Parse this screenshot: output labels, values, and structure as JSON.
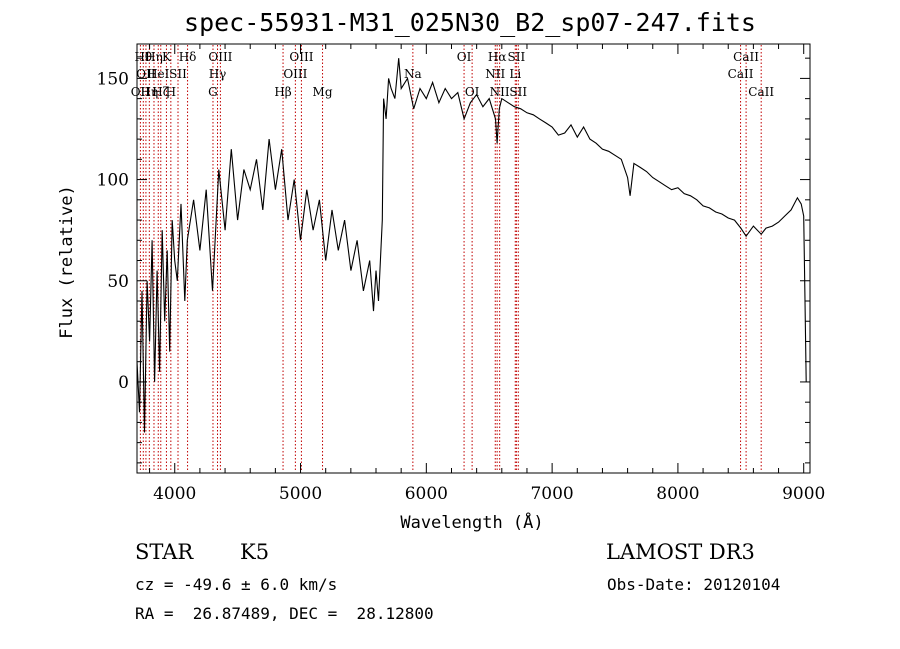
{
  "title": "spec-55931-M31_025N30_B2_sp07-247.fits",
  "info": {
    "class_label": "STAR",
    "subclass": "K5",
    "survey": "LAMOST DR3",
    "cz": "cz = -49.6 ± 6.0 km/s",
    "obs_date": "Obs-Date: 20120104",
    "coords": "RA =  26.87489, DEC =  28.12800"
  },
  "chart_data": {
    "type": "line",
    "title": "spec-55931-M31_025N30_B2_sp07-247.fits",
    "xlabel": "Wavelength (Å)",
    "ylabel": "Flux (relative)",
    "xlim": [
      3700,
      9050
    ],
    "ylim": [
      -45,
      167
    ],
    "xticks": [
      4000,
      5000,
      6000,
      7000,
      8000,
      9000
    ],
    "yticks": [
      0,
      50,
      100,
      150
    ],
    "series": [
      {
        "name": "flux",
        "points": [
          [
            3700,
            10
          ],
          [
            3720,
            -15
          ],
          [
            3740,
            45
          ],
          [
            3760,
            -25
          ],
          [
            3780,
            50
          ],
          [
            3800,
            20
          ],
          [
            3820,
            70
          ],
          [
            3840,
            0
          ],
          [
            3860,
            55
          ],
          [
            3880,
            5
          ],
          [
            3900,
            75
          ],
          [
            3920,
            30
          ],
          [
            3940,
            65
          ],
          [
            3960,
            15
          ],
          [
            3980,
            80
          ],
          [
            4000,
            60
          ],
          [
            4020,
            50
          ],
          [
            4050,
            88
          ],
          [
            4080,
            40
          ],
          [
            4100,
            70
          ],
          [
            4150,
            90
          ],
          [
            4200,
            65
          ],
          [
            4250,
            95
          ],
          [
            4300,
            45
          ],
          [
            4350,
            105
          ],
          [
            4400,
            75
          ],
          [
            4450,
            115
          ],
          [
            4500,
            80
          ],
          [
            4550,
            105
          ],
          [
            4600,
            95
          ],
          [
            4650,
            110
          ],
          [
            4700,
            85
          ],
          [
            4750,
            120
          ],
          [
            4800,
            95
          ],
          [
            4850,
            115
          ],
          [
            4900,
            80
          ],
          [
            4950,
            100
          ],
          [
            5000,
            70
          ],
          [
            5050,
            95
          ],
          [
            5100,
            75
          ],
          [
            5150,
            90
          ],
          [
            5200,
            60
          ],
          [
            5250,
            85
          ],
          [
            5300,
            65
          ],
          [
            5350,
            80
          ],
          [
            5400,
            55
          ],
          [
            5450,
            70
          ],
          [
            5500,
            45
          ],
          [
            5550,
            60
          ],
          [
            5580,
            35
          ],
          [
            5600,
            55
          ],
          [
            5620,
            40
          ],
          [
            5650,
            80
          ],
          [
            5660,
            140
          ],
          [
            5680,
            130
          ],
          [
            5700,
            150
          ],
          [
            5720,
            145
          ],
          [
            5750,
            140
          ],
          [
            5780,
            160
          ],
          [
            5800,
            145
          ],
          [
            5850,
            150
          ],
          [
            5900,
            135
          ],
          [
            5950,
            145
          ],
          [
            6000,
            140
          ],
          [
            6050,
            148
          ],
          [
            6100,
            138
          ],
          [
            6150,
            145
          ],
          [
            6200,
            140
          ],
          [
            6250,
            143
          ],
          [
            6300,
            130
          ],
          [
            6350,
            138
          ],
          [
            6400,
            142
          ],
          [
            6450,
            136
          ],
          [
            6500,
            140
          ],
          [
            6550,
            130
          ],
          [
            6563,
            118
          ],
          [
            6580,
            135
          ],
          [
            6600,
            140
          ],
          [
            6650,
            138
          ],
          [
            6700,
            136
          ],
          [
            6750,
            135
          ],
          [
            6800,
            133
          ],
          [
            6850,
            132
          ],
          [
            6900,
            130
          ],
          [
            6950,
            128
          ],
          [
            7000,
            126
          ],
          [
            7050,
            122
          ],
          [
            7100,
            123
          ],
          [
            7150,
            127
          ],
          [
            7200,
            121
          ],
          [
            7250,
            126
          ],
          [
            7300,
            120
          ],
          [
            7350,
            118
          ],
          [
            7400,
            115
          ],
          [
            7450,
            114
          ],
          [
            7500,
            112
          ],
          [
            7550,
            110
          ],
          [
            7600,
            101
          ],
          [
            7620,
            92
          ],
          [
            7650,
            108
          ],
          [
            7700,
            106
          ],
          [
            7750,
            104
          ],
          [
            7800,
            101
          ],
          [
            7850,
            99
          ],
          [
            7900,
            97
          ],
          [
            7950,
            95
          ],
          [
            8000,
            96
          ],
          [
            8050,
            93
          ],
          [
            8100,
            92
          ],
          [
            8150,
            90
          ],
          [
            8200,
            87
          ],
          [
            8250,
            86
          ],
          [
            8300,
            84
          ],
          [
            8350,
            83
          ],
          [
            8400,
            81
          ],
          [
            8450,
            80
          ],
          [
            8500,
            76
          ],
          [
            8542,
            72
          ],
          [
            8600,
            77
          ],
          [
            8662,
            73
          ],
          [
            8700,
            76
          ],
          [
            8750,
            77
          ],
          [
            8800,
            79
          ],
          [
            8850,
            82
          ],
          [
            8900,
            85
          ],
          [
            8950,
            91
          ],
          [
            8980,
            88
          ],
          [
            9000,
            82
          ],
          [
            9010,
            40
          ],
          [
            9020,
            0
          ]
        ]
      }
    ],
    "line_markers": [
      {
        "wave": 3727,
        "row": 2,
        "label": "OII"
      },
      {
        "wave": 3750,
        "row": 0,
        "label": "Hθ"
      },
      {
        "wave": 3771,
        "row": 1,
        "label": "OII"
      },
      {
        "wave": 3798,
        "row": 2,
        "label": "Hη"
      },
      {
        "wave": 3835,
        "row": 0,
        "label": "Hη"
      },
      {
        "wave": 3869,
        "row": 1,
        "label": "HeI"
      },
      {
        "wave": 3889,
        "row": 2,
        "label": "Hζ"
      },
      {
        "wave": 3934,
        "row": 0,
        "label": "K"
      },
      {
        "wave": 3969,
        "row": 2,
        "label": "H"
      },
      {
        "wave": 4026,
        "row": 1,
        "label": "SII"
      },
      {
        "wave": 4102,
        "row": 0,
        "label": "Hδ"
      },
      {
        "wave": 4304,
        "row": 2,
        "label": "G"
      },
      {
        "wave": 4340,
        "row": 1,
        "label": "Hγ"
      },
      {
        "wave": 4363,
        "row": 0,
        "label": "OIII"
      },
      {
        "wave": 4861,
        "row": 2,
        "label": "Hβ"
      },
      {
        "wave": 4959,
        "row": 1,
        "label": "OIII"
      },
      {
        "wave": 5007,
        "row": 0,
        "label": "OIII"
      },
      {
        "wave": 5175,
        "row": 2,
        "label": "Mg"
      },
      {
        "wave": 5893,
        "row": 1,
        "label": "Na"
      },
      {
        "wave": 6300,
        "row": 0,
        "label": "OI"
      },
      {
        "wave": 6364,
        "row": 2,
        "label": "OI"
      },
      {
        "wave": 6548,
        "row": 1,
        "label": "NII"
      },
      {
        "wave": 6563,
        "row": 0,
        "label": "Hα"
      },
      {
        "wave": 6583,
        "row": 2,
        "label": "NII"
      },
      {
        "wave": 6707,
        "row": 1,
        "label": "Li"
      },
      {
        "wave": 6716,
        "row": 0,
        "label": "SII"
      },
      {
        "wave": 6731,
        "row": 2,
        "label": "SII"
      },
      {
        "wave": 8498,
        "row": 1,
        "label": "CaII"
      },
      {
        "wave": 8542,
        "row": 0,
        "label": "CaII"
      },
      {
        "wave": 8662,
        "row": 2,
        "label": "CaII"
      }
    ]
  }
}
